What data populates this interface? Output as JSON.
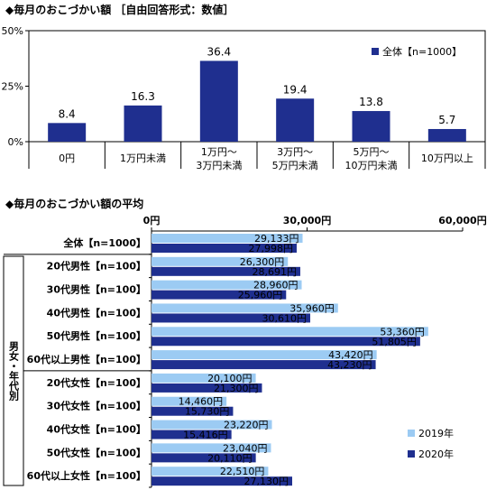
{
  "chart_data": [
    {
      "type": "bar",
      "title": "◆毎月のおこづかい額 ［自由回答形式：数値］",
      "categories": [
        [
          "0円"
        ],
        [
          "1万円未満"
        ],
        [
          "1万円～",
          "3万円未満"
        ],
        [
          "3万円～",
          "5万円未満"
        ],
        [
          "5万円～",
          "10万円未満"
        ],
        [
          "10万円以上"
        ]
      ],
      "series": [
        {
          "name": "全体【n=1000】",
          "values": [
            8.4,
            16.3,
            36.4,
            19.4,
            13.8,
            5.7
          ]
        }
      ],
      "ylim": [
        0,
        50
      ],
      "yticks": [
        "0%",
        "25%",
        "50%"
      ],
      "ytick_values": [
        0,
        25,
        50
      ],
      "color": "#1f2f8f",
      "legend_position": "top-right"
    },
    {
      "type": "bar",
      "orientation": "horizontal",
      "title": "◆毎月のおこづかい額の平均",
      "group_label": "男女・年代別",
      "categories": [
        "全体【n=1000】",
        "20代男性【n=100】",
        "30代男性【n=100】",
        "40代男性【n=100】",
        "50代男性【n=100】",
        "60代以上男性【n=100】",
        "20代女性【n=100】",
        "30代女性【n=100】",
        "40代女性【n=100】",
        "50代女性【n=100】",
        "60代以上女性【n=100】"
      ],
      "series": [
        {
          "name": "2019年",
          "color": "#9ccbf3",
          "values": [
            29133,
            26300,
            28960,
            35960,
            53360,
            43420,
            20100,
            14460,
            23220,
            23040,
            22510
          ],
          "labels": [
            "29,133円",
            "26,300円",
            "28,960円",
            "35,960円",
            "53,360円",
            "43,420円",
            "20,100円",
            "14,460円",
            "23,220円",
            "23,040円",
            "22,510円"
          ]
        },
        {
          "name": "2020年",
          "color": "#1f2f8f",
          "values": [
            27998,
            28691,
            25960,
            30610,
            51805,
            43230,
            21300,
            15730,
            15416,
            20110,
            27130
          ],
          "labels": [
            "27,998円",
            "28,691円",
            "25,960円",
            "30,610円",
            "51,805円",
            "43,230円",
            "21,300円",
            "15,730円",
            "15,416円",
            "20,110円",
            "27,130円"
          ]
        }
      ],
      "xlim": [
        0,
        60000
      ],
      "xticks": [
        "0円",
        "30,000円",
        "60,000円"
      ],
      "xtick_values": [
        0,
        30000,
        60000
      ],
      "legend_position": "bottom-right"
    }
  ]
}
